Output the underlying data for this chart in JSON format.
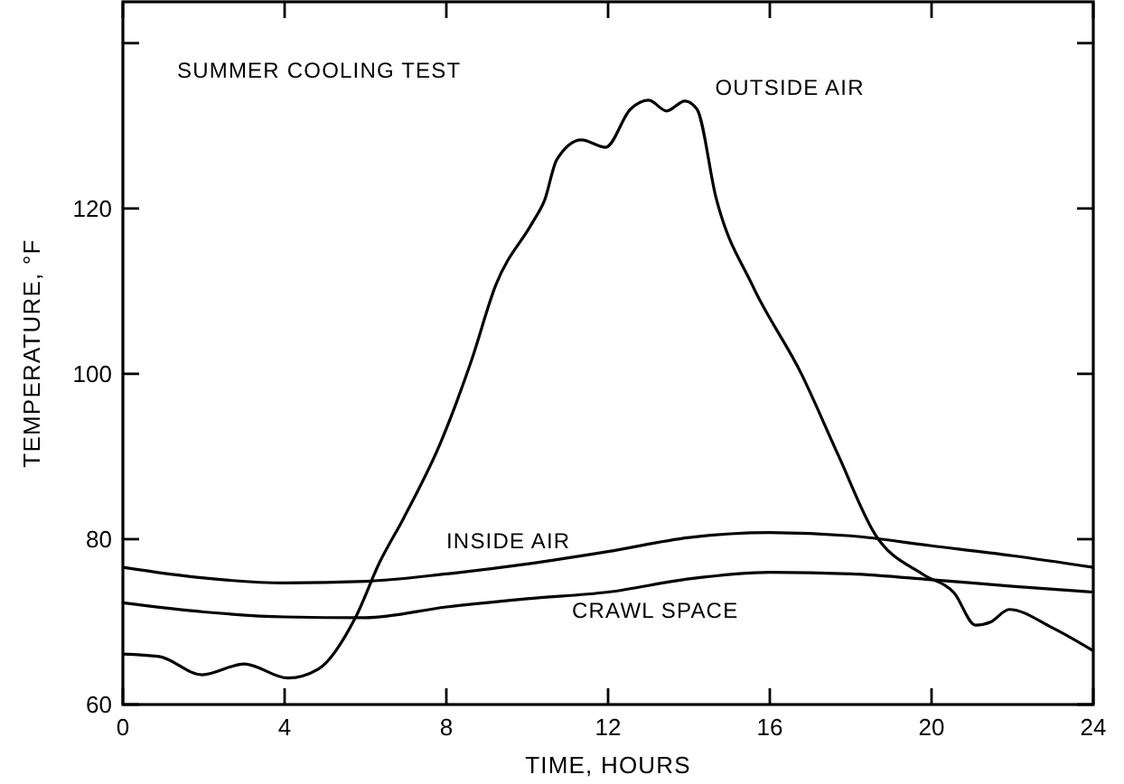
{
  "chart_data": {
    "type": "line",
    "annotations": [
      "SUMMER COOLING TEST"
    ],
    "xlabel": "TIME, HOURS",
    "ylabel": "TEMPERATURE, °F",
    "xlim": [
      0,
      24
    ],
    "ylim": [
      60,
      145
    ],
    "xticks": [
      0,
      4,
      8,
      12,
      16,
      20,
      24
    ],
    "yticks": [
      60,
      80,
      100,
      120,
      {
        "value": 140,
        "label": null
      }
    ],
    "grid": false,
    "legend": false,
    "marker": "none",
    "line_style": "solid",
    "series": [
      {
        "name": "OUTSIDE AIR",
        "color": "#000000",
        "x": [
          0,
          0.9,
          1.96,
          3.0,
          4.08,
          4.84,
          5.74,
          6.35,
          6.95,
          7.86,
          8.62,
          9.22,
          10.13,
          10.43,
          10.73,
          11.34,
          11.94,
          12.55,
          13.0,
          13.45,
          13.9,
          14.2,
          14.67,
          15.57,
          16.78,
          17.69,
          18.59,
          19.8,
          20.56,
          21.09,
          21.47,
          21.92,
          22.98,
          24
        ],
        "values": [
          66.1,
          65.8,
          63.6,
          64.9,
          63.2,
          64.3,
          70.4,
          77.2,
          82.6,
          91.7,
          101.6,
          110.7,
          118.3,
          121,
          125.9,
          128.3,
          127.4,
          132,
          133.1,
          131.8,
          133,
          132,
          121.3,
          110.7,
          100,
          90.2,
          80.7,
          75.7,
          73.5,
          69.6,
          70,
          71.5,
          69.3,
          66.5
        ]
      },
      {
        "name": "INSIDE AIR",
        "color": "#000000",
        "x": [
          0,
          2,
          4,
          6,
          8,
          10,
          12,
          14,
          16,
          18,
          20,
          22,
          24
        ],
        "values": [
          76.6,
          75.3,
          74.7,
          74.9,
          75.8,
          77,
          78.5,
          80.2,
          80.8,
          80.4,
          79.2,
          78,
          76.6
        ]
      },
      {
        "name": "CRAWL SPACE",
        "color": "#000000",
        "x": [
          0,
          2,
          4,
          6,
          8,
          10,
          12,
          14,
          16,
          18,
          20,
          22,
          24
        ],
        "values": [
          72.3,
          71.2,
          70.6,
          70.5,
          71.8,
          72.8,
          73.6,
          75.2,
          76,
          75.8,
          75.1,
          74.3,
          73.6
        ]
      }
    ]
  }
}
